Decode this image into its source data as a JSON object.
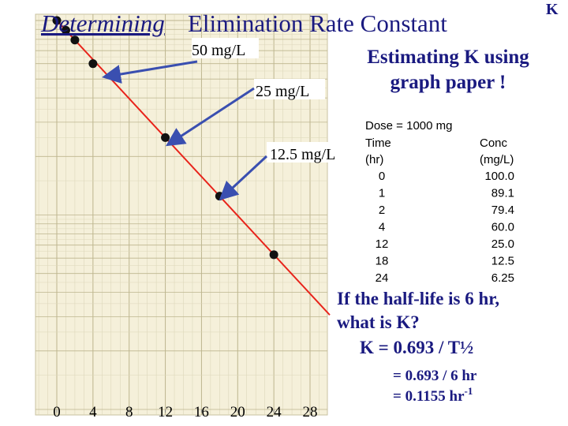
{
  "title": {
    "emphasis": "Determining",
    "rest": "Elimination Rate Constant"
  },
  "corner": "K",
  "chart_data": {
    "type": "scatter",
    "x": [
      0,
      1,
      2,
      4,
      12,
      18,
      24
    ],
    "values": [
      100,
      89.1,
      79.4,
      60,
      25,
      12.5,
      6.25
    ],
    "xlim": [
      0,
      28
    ],
    "xticks": [
      0,
      4,
      8,
      12,
      16,
      20,
      24,
      28
    ],
    "ylim": [
      1,
      100
    ],
    "log_y": true,
    "color": "#111111",
    "line_color": "#e8231a",
    "annotations": [
      "50 mg/L",
      "25 mg/L",
      "12.5 mg/L"
    ]
  },
  "heading": [
    "Estimating K using",
    "graph paper !"
  ],
  "table": {
    "dose": "Dose = 1000 mg",
    "header": [
      [
        "Time",
        "Conc"
      ],
      [
        "(hr)",
        "(mg/L)"
      ]
    ],
    "rows": [
      [
        "0",
        "100.0"
      ],
      [
        "1",
        "89.1"
      ],
      [
        "2",
        "79.4"
      ],
      [
        "4",
        "60.0"
      ],
      [
        "12",
        "25.0"
      ],
      [
        "18",
        "12.5"
      ],
      [
        "24",
        "6.25"
      ]
    ]
  },
  "question": [
    "If the half-life is 6 hr,",
    "what is K?"
  ],
  "formula": [
    "K   = 0.693 / T½",
    "= 0.693 / 6 hr",
    "= 0.1155 hr"
  ],
  "exponent": "-1"
}
